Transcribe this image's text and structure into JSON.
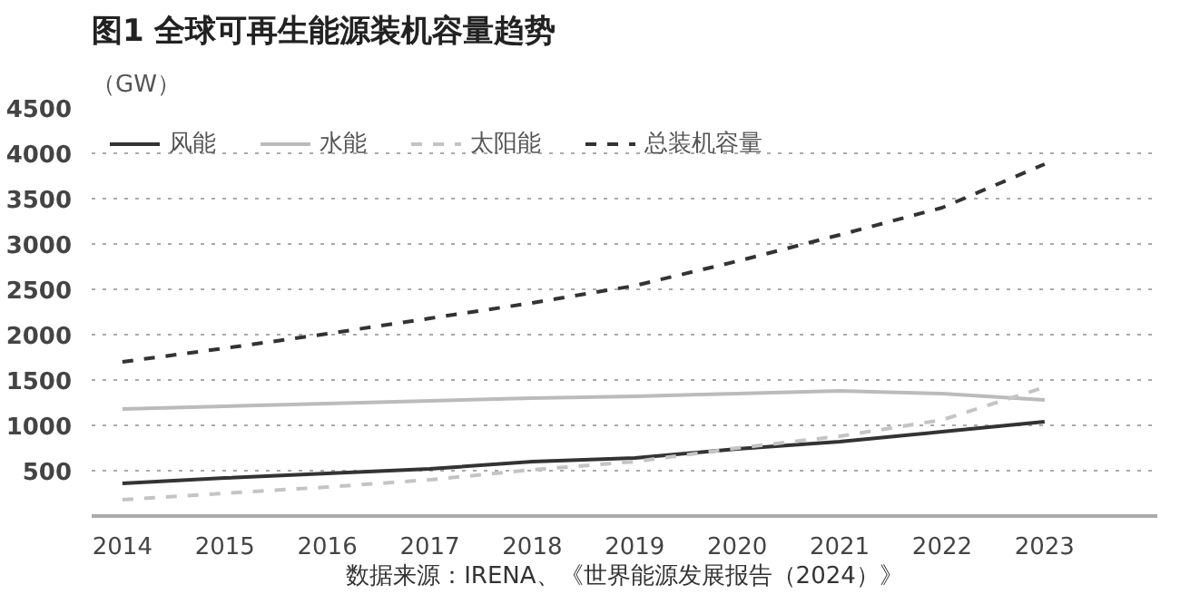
{
  "chart_data": {
    "type": "line",
    "title": "图1 全球可再生能源装机容量趋势",
    "ylabel": "（GW）",
    "x": [
      2014,
      2015,
      2016,
      2017,
      2018,
      2019,
      2020,
      2021,
      2022,
      2023
    ],
    "series": [
      {
        "name": "风能",
        "color": "#333333",
        "line_style": "solid",
        "values": [
          360,
          420,
          470,
          520,
          600,
          640,
          740,
          820,
          930,
          1040
        ]
      },
      {
        "name": "水能",
        "color": "#bbbbbb",
        "line_style": "solid",
        "values": [
          1180,
          1210,
          1240,
          1270,
          1300,
          1320,
          1350,
          1380,
          1350,
          1280
        ]
      },
      {
        "name": "太阳能",
        "color": "#c4c4c4",
        "line_style": "dashed",
        "values": [
          180,
          250,
          320,
          400,
          510,
          600,
          750,
          880,
          1060,
          1420
        ]
      },
      {
        "name": "总装机容量",
        "color": "#333333",
        "line_style": "dashed",
        "values": [
          1700,
          1850,
          2010,
          2180,
          2350,
          2540,
          2810,
          3100,
          3400,
          3880
        ]
      }
    ],
    "xlim": [
      2013.7,
      2024.1
    ],
    "xticks": [
      2014,
      2015,
      2016,
      2017,
      2018,
      2019,
      2020,
      2021,
      2022,
      2023
    ],
    "ylim": [
      0,
      4500
    ],
    "yticks": [
      500,
      1000,
      1500,
      2000,
      2500,
      3000,
      3500,
      4000,
      4500
    ],
    "grid": "y",
    "legend": "top",
    "marker": "none",
    "annotations": [
      "数据来源：IRENA、《世界能源发展报告（2024）》"
    ]
  }
}
